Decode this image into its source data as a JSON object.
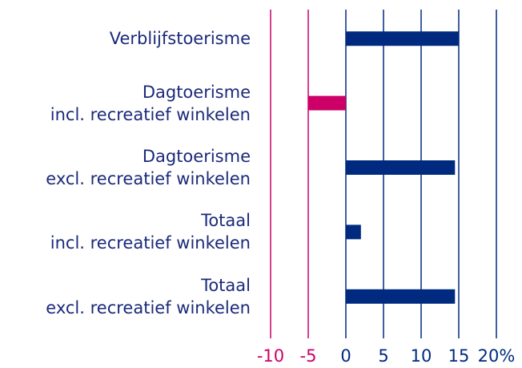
{
  "chart_data": {
    "type": "barh",
    "categories": [
      "Verblijfstoerisme",
      "Dagtoerisme\nincl. recreatief winkelen",
      "Dagtoerisme\nexcl. recreatief winkelen",
      "Totaal\nincl. recreatief winkelen",
      "Totaal\nexcl. recreatief winkelen"
    ],
    "values": [
      15,
      -5,
      14.5,
      2,
      14.5
    ],
    "color": "#002a7f",
    "negative_color": "#cc0066",
    "xlim": [
      -10,
      20
    ],
    "xticks": [
      -10,
      -5,
      0,
      5,
      10,
      15,
      {
        "value": 20,
        "label": "20%"
      }
    ],
    "grid": true
  }
}
